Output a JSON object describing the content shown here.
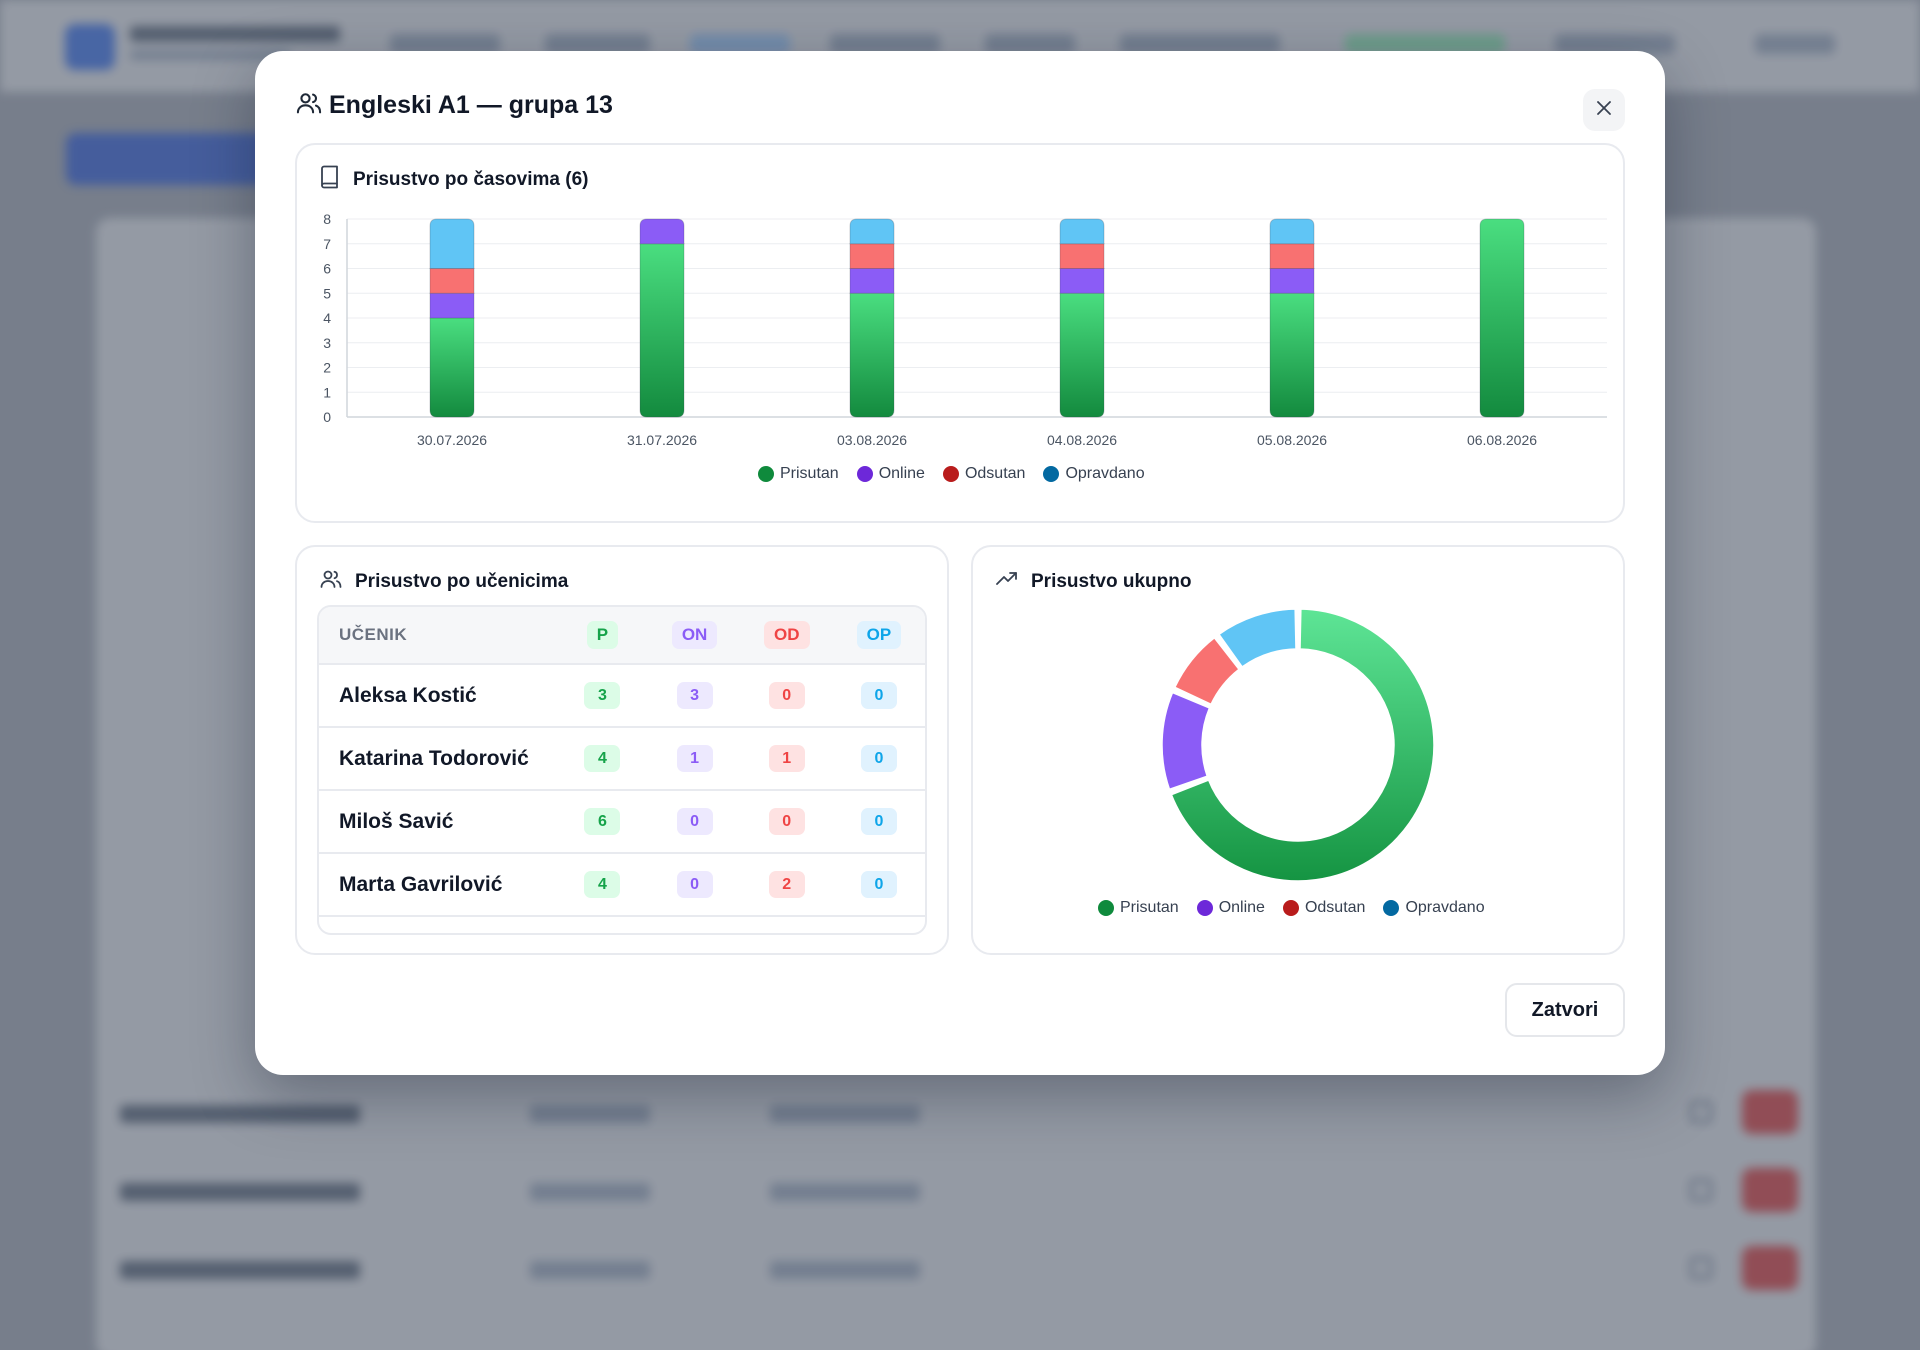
{
  "modal": {
    "title": "Engleski A1 — grupa 13",
    "close_button": "Zatvori"
  },
  "lessons_card": {
    "title": "Prisustvo po časovima (6)"
  },
  "students_card": {
    "title": "Prisustvo po učenicima",
    "columns": [
      "UČENIK",
      "P",
      "ON",
      "OD",
      "OP"
    ],
    "rows": [
      {
        "name": "Aleksa Kostić",
        "p": "3",
        "on": "3",
        "od": "0",
        "op": "0"
      },
      {
        "name": "Katarina Todorović",
        "p": "4",
        "on": "1",
        "od": "1",
        "op": "0"
      },
      {
        "name": "Miloš Savić",
        "p": "6",
        "on": "0",
        "od": "0",
        "op": "0"
      },
      {
        "name": "Marta Gavrilović",
        "p": "4",
        "on": "0",
        "od": "2",
        "op": "0"
      }
    ]
  },
  "total_card": {
    "title": "Prisustvo ukupno"
  },
  "colors": {
    "prisutan": "#16a34a",
    "online": "#8b5cf6",
    "odsutan": "#f87171",
    "opravdano": "#60c5f5"
  },
  "chart_data": [
    {
      "type": "bar",
      "stacked": true,
      "categories": [
        "30.07.2026",
        "31.07.2026",
        "03.08.2026",
        "04.08.2026",
        "05.08.2026",
        "06.08.2026"
      ],
      "series": [
        {
          "name": "Prisutan",
          "values": [
            4,
            7,
            5,
            5,
            5,
            8
          ]
        },
        {
          "name": "Online",
          "values": [
            1,
            1,
            1,
            1,
            1,
            0
          ]
        },
        {
          "name": "Odsutan",
          "values": [
            1,
            0,
            1,
            1,
            1,
            0
          ]
        },
        {
          "name": "Opravdano",
          "values": [
            2,
            0,
            1,
            1,
            1,
            0
          ]
        }
      ],
      "ylim": [
        0,
        8
      ],
      "yticks": [
        "0",
        "1",
        "2",
        "3",
        "4",
        "5",
        "6",
        "7",
        "8"
      ],
      "grid": true,
      "legend": "bottom"
    },
    {
      "type": "pie",
      "donut": true,
      "labels": [
        "Prisutan",
        "Online",
        "Odsutan",
        "Opravdano"
      ],
      "values": [
        34,
        6,
        4,
        5
      ],
      "legend": "bottom"
    }
  ]
}
